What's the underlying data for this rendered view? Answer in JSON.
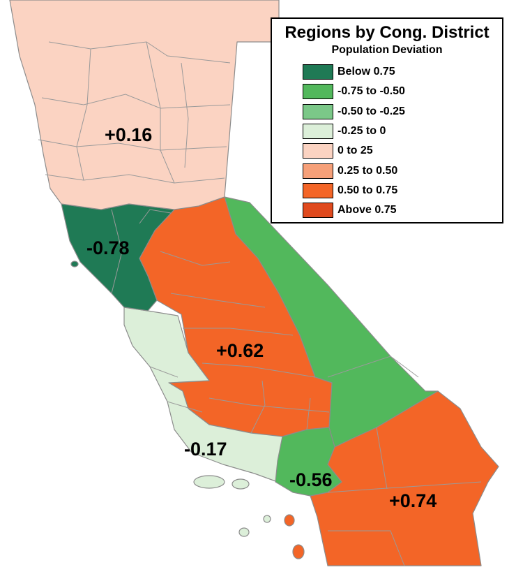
{
  "legend": {
    "title": "Regions by Cong. District",
    "subtitle": "Population Deviation",
    "items": [
      {
        "label": "Below 0.75",
        "color": "#1f7a55"
      },
      {
        "label": "-0.75 to -0.50",
        "color": "#52b85c"
      },
      {
        "label": "-0.50 to -0.25",
        "color": "#7bc888"
      },
      {
        "label": "-0.25 to 0",
        "color": "#dcefd9"
      },
      {
        "label": "0 to 25",
        "color": "#fbd3c2"
      },
      {
        "label": "0.25 to 0.50",
        "color": "#f6a079"
      },
      {
        "label": "0.50 to 0.75",
        "color": "#f36527"
      },
      {
        "label": "Above 0.75",
        "color": "#e04a1e"
      }
    ]
  },
  "regions": [
    {
      "name": "north-region",
      "deviation": "+0.16",
      "color": "#fbd3c2"
    },
    {
      "name": "bay-area-region",
      "deviation": "-0.78",
      "color": "#1f7a55"
    },
    {
      "name": "central-valley-region",
      "deviation": "+0.62",
      "color": "#f36527"
    },
    {
      "name": "central-coast-region",
      "deviation": "-0.17",
      "color": "#dcefd9"
    },
    {
      "name": "los-angeles-region",
      "deviation": "-0.56",
      "color": "#52b85c"
    },
    {
      "name": "southern-region",
      "deviation": "+0.74",
      "color": "#f36527"
    },
    {
      "name": "eastern-sierra-region",
      "deviation": "",
      "color": "#52b85c"
    }
  ]
}
